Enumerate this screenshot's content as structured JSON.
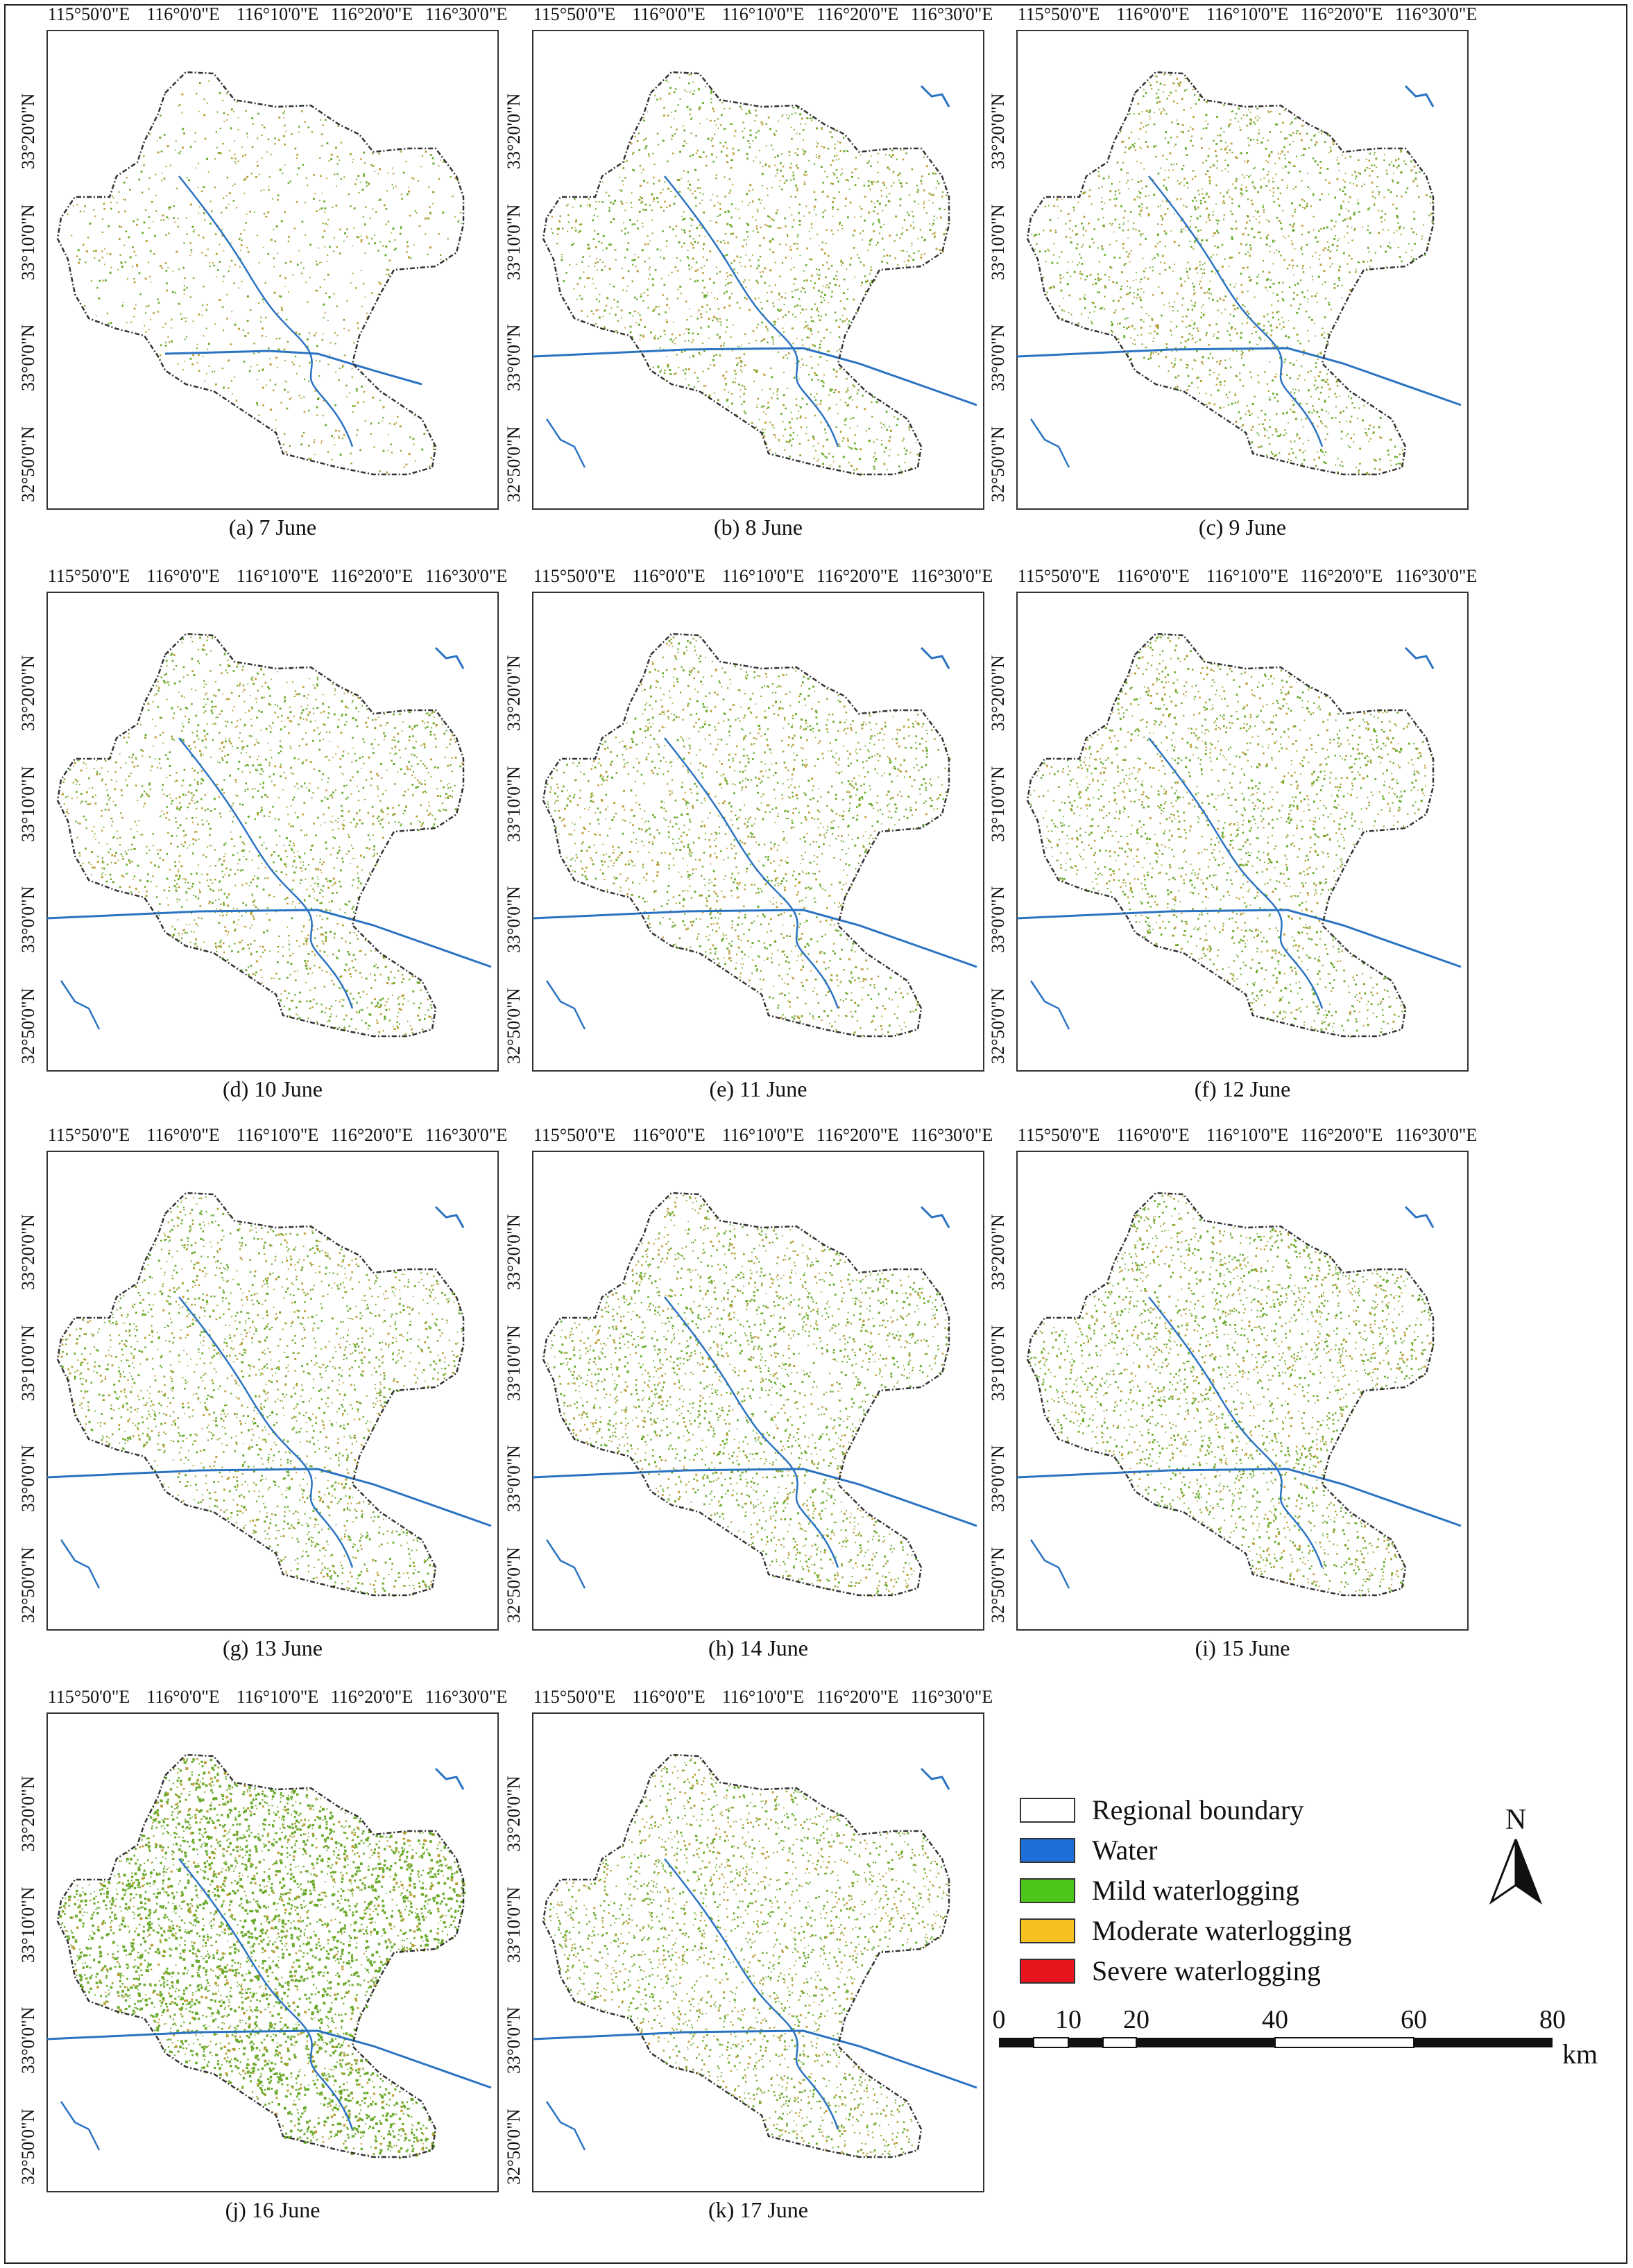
{
  "figure": {
    "lon_labels": [
      "115°50'0\"E",
      "116°0'0\"E",
      "116°10'0\"E",
      "116°20'0\"E",
      "116°30'0\"E"
    ],
    "lat_labels": [
      "33°20'0\"N",
      "33°10'0\"N",
      "33°0'0\"N",
      "32°50'0\"N"
    ],
    "panels": [
      {
        "caption": "(a) 7 June",
        "mild_density": 0.1,
        "full_extent": false
      },
      {
        "caption": "(b) 8 June",
        "mild_density": 0.35,
        "full_extent": true
      },
      {
        "caption": "(c) 9 June",
        "mild_density": 0.38,
        "full_extent": true
      },
      {
        "caption": "(d) 10 June",
        "mild_density": 0.4,
        "full_extent": true
      },
      {
        "caption": "(e) 11 June",
        "mild_density": 0.4,
        "full_extent": true
      },
      {
        "caption": "(f) 12 June",
        "mild_density": 0.45,
        "full_extent": true
      },
      {
        "caption": "(g) 13 June",
        "mild_density": 0.5,
        "full_extent": true
      },
      {
        "caption": "(h) 14 June",
        "mild_density": 0.55,
        "full_extent": true
      },
      {
        "caption": "(i) 15 June",
        "mild_density": 0.6,
        "full_extent": true
      },
      {
        "caption": "(j) 16 June",
        "mild_density": 1.0,
        "full_extent": true
      },
      {
        "caption": "(k) 17 June",
        "mild_density": 0.55,
        "full_extent": true
      }
    ]
  },
  "legend": {
    "items": [
      {
        "label": "Regional boundary",
        "color": "#ffffff"
      },
      {
        "label": "Water",
        "color": "#1f6fd9"
      },
      {
        "label": "Mild waterlogging",
        "color": "#4cc61a"
      },
      {
        "label": "Moderate waterlogging",
        "color": "#f5c020"
      },
      {
        "label": "Severe waterlogging",
        "color": "#e8141e"
      }
    ]
  },
  "north_arrow": {
    "letter": "N"
  },
  "scale_bar": {
    "ticks": [
      "0",
      "10",
      "20",
      "40",
      "60",
      "80"
    ],
    "unit": "km"
  },
  "colors": {
    "boundary": "#333333",
    "water_line": "#2a73c2",
    "mild_dot": "#6aaa2a",
    "moderate_dot": "#b9a038"
  }
}
